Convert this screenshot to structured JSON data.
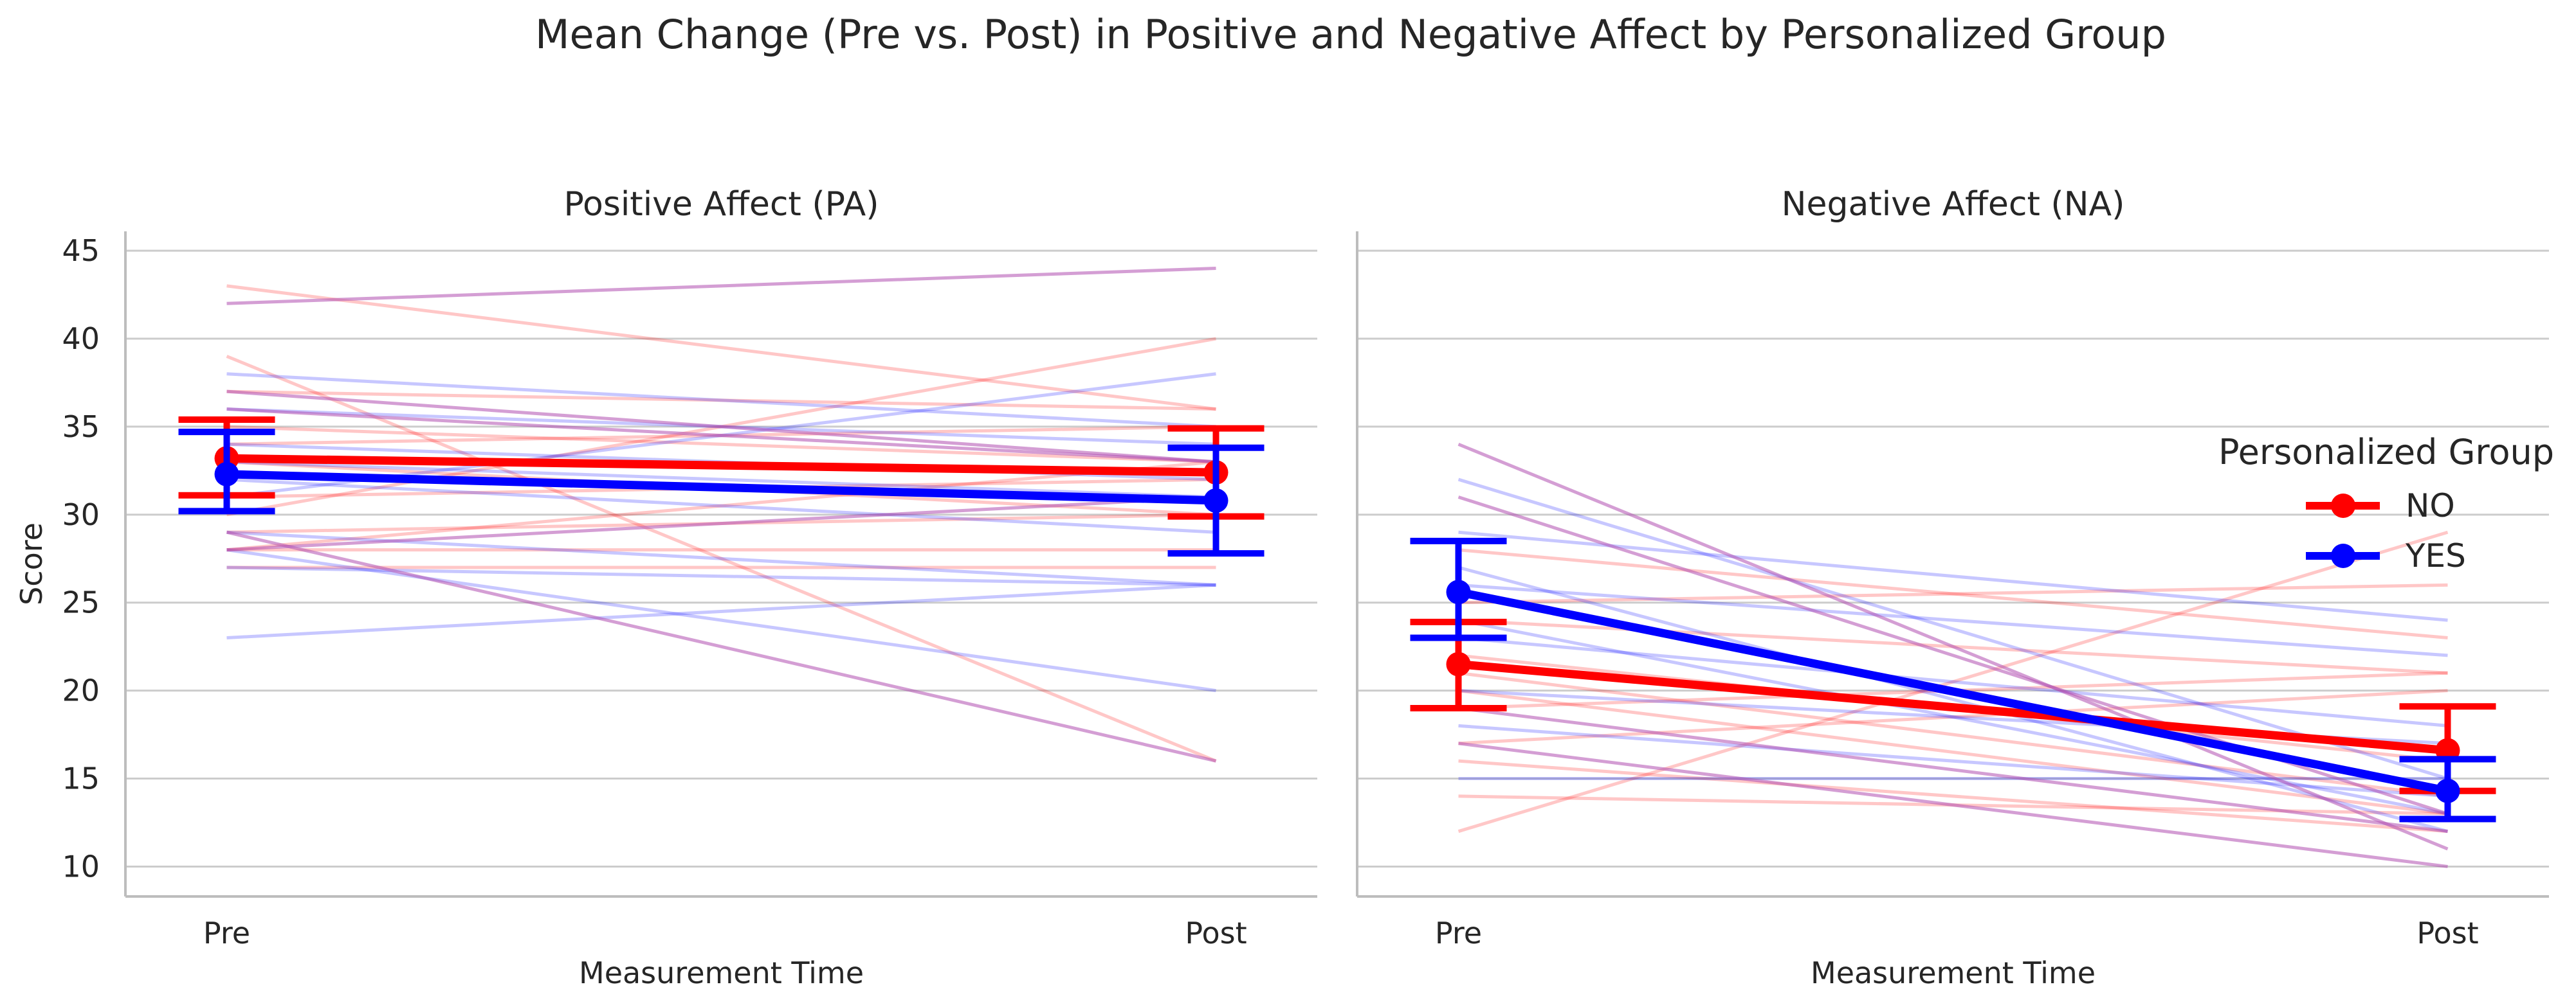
{
  "chart_data": {
    "type": "line",
    "title": "Mean Change (Pre vs. Post) in Positive and Negative Affect by Personalized Group",
    "legend": {
      "title": "Personalized Group",
      "placement": "right",
      "entries": [
        {
          "label": "NO",
          "color": "#ff0000"
        },
        {
          "label": "YES",
          "color": "#0000ff"
        }
      ]
    },
    "colors": {
      "NO": "#ff0000",
      "YES": "#0000ff",
      "overlap": "#b04fb0"
    },
    "grid": "horizontal",
    "ylim": [
      8.3,
      46.1
    ],
    "yticks": [
      10,
      15,
      20,
      25,
      30,
      35,
      40,
      45
    ],
    "x": [
      "Pre",
      "Post"
    ],
    "panels": [
      {
        "title": "Positive Affect (PA)",
        "xlabel": "Measurement Time",
        "ylabel": "Score",
        "series": [
          {
            "name": "NO",
            "values": [
              33.2,
              32.4
            ],
            "ci_low": [
              31.1,
              29.9
            ],
            "ci_high": [
              35.4,
              34.9
            ]
          },
          {
            "name": "YES",
            "values": [
              32.3,
              30.8
            ],
            "ci_low": [
              30.2,
              27.8
            ],
            "ci_high": [
              34.7,
              33.8
            ]
          }
        ],
        "subjects": [
          {
            "group": "NO",
            "values": [
              43,
              36
            ]
          },
          {
            "group": "NO",
            "values": [
              39,
              16
            ]
          },
          {
            "group": "NO",
            "values": [
              37,
              36
            ]
          },
          {
            "group": "NO",
            "values": [
              35,
              33
            ]
          },
          {
            "group": "NO",
            "values": [
              34,
              35
            ]
          },
          {
            "group": "NO",
            "values": [
              33,
              30
            ]
          },
          {
            "group": "NO",
            "values": [
              31,
              32
            ]
          },
          {
            "group": "NO",
            "values": [
              30,
              40
            ]
          },
          {
            "group": "NO",
            "values": [
              29,
              30
            ]
          },
          {
            "group": "NO",
            "values": [
              28,
              33
            ]
          },
          {
            "group": "NO",
            "values": [
              28,
              28
            ]
          },
          {
            "group": "NO",
            "values": [
              27,
              27
            ]
          },
          {
            "group": "YES",
            "values": [
              38,
              35
            ]
          },
          {
            "group": "YES",
            "values": [
              36,
              34
            ]
          },
          {
            "group": "YES",
            "values": [
              34,
              32
            ]
          },
          {
            "group": "YES",
            "values": [
              33,
              31
            ]
          },
          {
            "group": "YES",
            "values": [
              32,
              29
            ]
          },
          {
            "group": "YES",
            "values": [
              31,
              38
            ]
          },
          {
            "group": "YES",
            "values": [
              29,
              26
            ]
          },
          {
            "group": "YES",
            "values": [
              28,
              20
            ]
          },
          {
            "group": "YES",
            "values": [
              27,
              26
            ]
          },
          {
            "group": "YES",
            "values": [
              23,
              26
            ]
          },
          {
            "group": "BOTH",
            "values": [
              42,
              44
            ]
          },
          {
            "group": "BOTH",
            "values": [
              37,
              33
            ]
          },
          {
            "group": "BOTH",
            "values": [
              36,
              33
            ]
          },
          {
            "group": "BOTH",
            "values": [
              29,
              16
            ]
          },
          {
            "group": "BOTH",
            "values": [
              28,
              31
            ]
          }
        ]
      },
      {
        "title": "Negative Affect (NA)",
        "xlabel": "Measurement Time",
        "ylabel": "",
        "series": [
          {
            "name": "NO",
            "values": [
              21.5,
              16.6
            ],
            "ci_low": [
              19.0,
              14.3
            ],
            "ci_high": [
              23.9,
              19.1
            ]
          },
          {
            "name": "YES",
            "values": [
              25.6,
              14.3
            ],
            "ci_low": [
              23.0,
              12.7
            ],
            "ci_high": [
              28.5,
              16.1
            ]
          }
        ],
        "subjects": [
          {
            "group": "NO",
            "values": [
              28,
              23
            ]
          },
          {
            "group": "NO",
            "values": [
              25,
              26
            ]
          },
          {
            "group": "NO",
            "values": [
              24,
              21
            ]
          },
          {
            "group": "NO",
            "values": [
              22,
              16
            ]
          },
          {
            "group": "NO",
            "values": [
              21,
              14
            ]
          },
          {
            "group": "NO",
            "values": [
              20,
              13
            ]
          },
          {
            "group": "NO",
            "values": [
              19,
              21
            ]
          },
          {
            "group": "NO",
            "values": [
              17,
              20
            ]
          },
          {
            "group": "NO",
            "values": [
              16,
              12
            ]
          },
          {
            "group": "NO",
            "values": [
              14,
              13
            ]
          },
          {
            "group": "NO",
            "values": [
              12,
              29
            ]
          },
          {
            "group": "YES",
            "values": [
              32,
              15
            ]
          },
          {
            "group": "YES",
            "values": [
              29,
              24
            ]
          },
          {
            "group": "YES",
            "values": [
              27,
              12
            ]
          },
          {
            "group": "YES",
            "values": [
              26,
              22
            ]
          },
          {
            "group": "YES",
            "values": [
              24,
              13
            ]
          },
          {
            "group": "YES",
            "values": [
              23,
              18
            ]
          },
          {
            "group": "YES",
            "values": [
              20,
              17
            ]
          },
          {
            "group": "YES",
            "values": [
              18,
              14
            ]
          },
          {
            "group": "YES",
            "values": [
              15,
              15
            ]
          },
          {
            "group": "BOTH",
            "values": [
              34,
              11
            ]
          },
          {
            "group": "BOTH",
            "values": [
              31,
              13
            ]
          },
          {
            "group": "BOTH",
            "values": [
              19,
              12
            ]
          },
          {
            "group": "BOTH",
            "values": [
              17,
              10
            ]
          }
        ]
      }
    ]
  }
}
